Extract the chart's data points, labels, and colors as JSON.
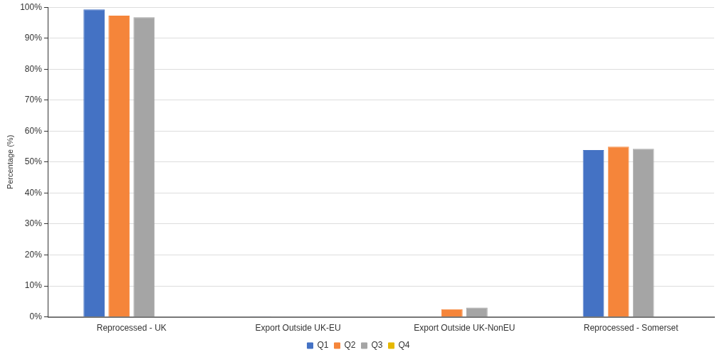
{
  "chart_data": {
    "type": "bar",
    "ylabel": "Percentage (%)",
    "categories": [
      "Reprocessed - UK",
      "Export Outside UK-EU",
      "Export Outside UK-NonEU",
      "Reprocessed - Somerset"
    ],
    "series": [
      {
        "name": "Q1",
        "color": "#4472c4",
        "values": [
          99.3,
          0.2,
          null,
          53.9
        ]
      },
      {
        "name": "Q2",
        "color": "#f5853a",
        "values": [
          97.3,
          null,
          2.5,
          55.0
        ]
      },
      {
        "name": "Q3",
        "color": "#a5a5a5",
        "values": [
          96.8,
          null,
          3.0,
          54.3
        ]
      },
      {
        "name": "Q4",
        "color": "#e6b800",
        "values": [
          null,
          null,
          null,
          null
        ]
      }
    ],
    "ylim": [
      0,
      100
    ],
    "yticks": [
      {
        "value": 0,
        "label": "0%"
      },
      {
        "value": 10,
        "label": "10%"
      },
      {
        "value": 20,
        "label": "20%"
      },
      {
        "value": 30,
        "label": "30%"
      },
      {
        "value": 40,
        "label": "40%"
      },
      {
        "value": 50,
        "label": "50%"
      },
      {
        "value": 60,
        "label": "60%"
      },
      {
        "value": 70,
        "label": "70%"
      },
      {
        "value": 80,
        "label": "80%"
      },
      {
        "value": 90,
        "label": "90%"
      },
      {
        "value": 100,
        "label": "100%"
      }
    ],
    "grid": "y",
    "legend": "bottom"
  }
}
